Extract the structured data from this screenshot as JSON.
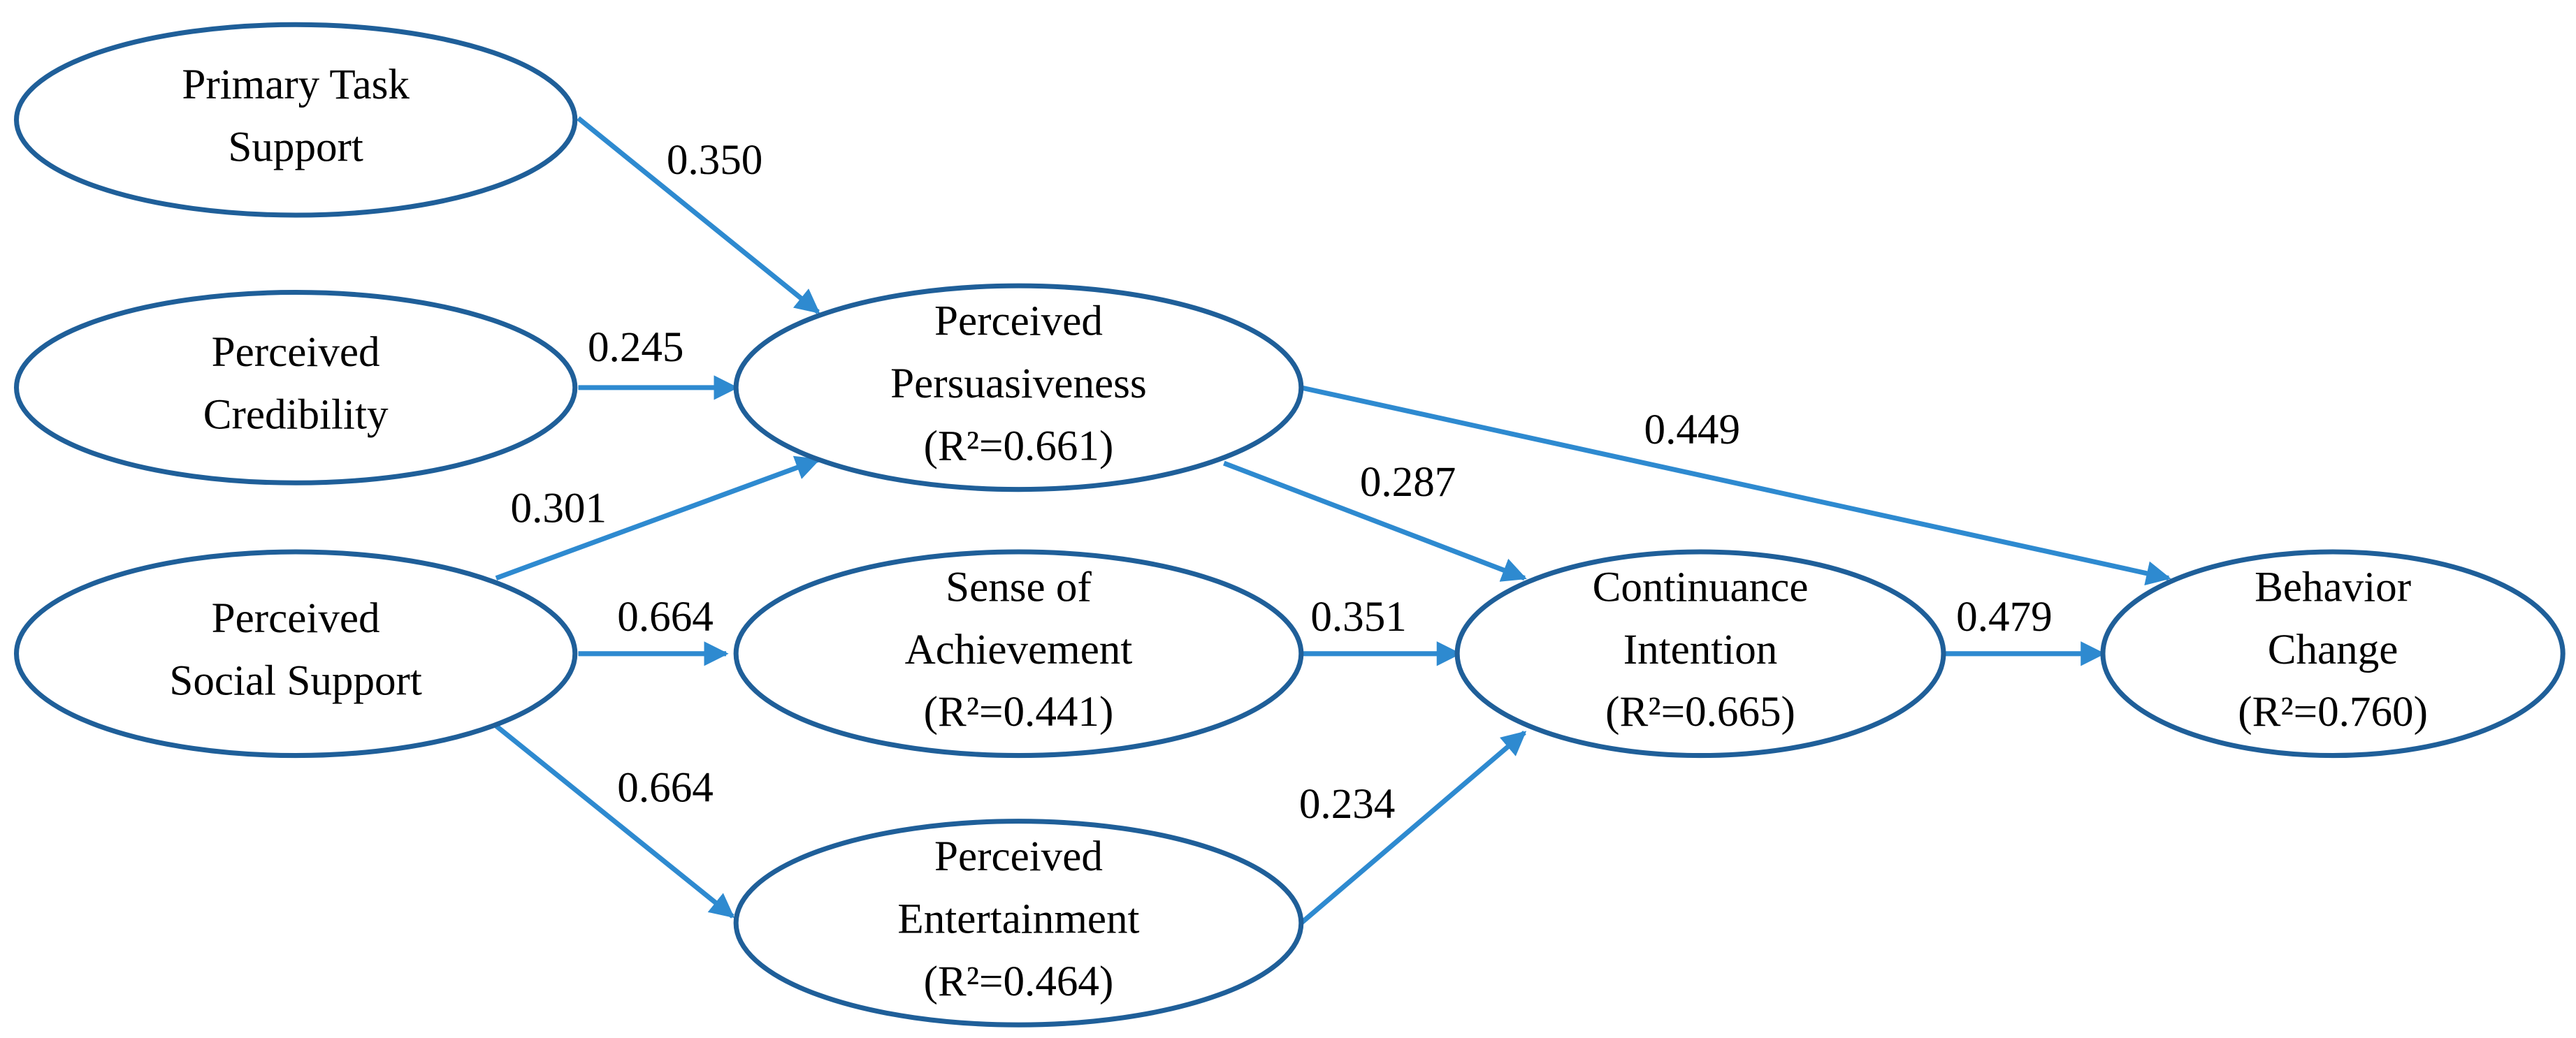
{
  "nodes": [
    {
      "id": "pts",
      "lines": [
        "Primary Task",
        "Support"
      ]
    },
    {
      "id": "pc",
      "lines": [
        "Perceived",
        "Credibility"
      ]
    },
    {
      "id": "pss",
      "lines": [
        "Perceived",
        "Social Support"
      ]
    },
    {
      "id": "pp",
      "lines": [
        "Perceived",
        "Persuasiveness",
        "(R²=0.661)"
      ]
    },
    {
      "id": "sa",
      "lines": [
        "Sense of",
        "Achievement",
        "(R²=0.441)"
      ]
    },
    {
      "id": "pe",
      "lines": [
        "Perceived",
        "Entertainment",
        "(R²=0.464)"
      ]
    },
    {
      "id": "ci",
      "lines": [
        "Continuance",
        "Intention",
        "(R²=0.665)"
      ]
    },
    {
      "id": "bc",
      "lines": [
        "Behavior",
        "Change",
        "(R²=0.760)"
      ]
    }
  ],
  "edges": [
    {
      "from": "pts",
      "to": "pp",
      "label": "0.350"
    },
    {
      "from": "pc",
      "to": "pp",
      "label": "0.245"
    },
    {
      "from": "pss",
      "to": "pp",
      "label": "0.301"
    },
    {
      "from": "pss",
      "to": "sa",
      "label": "0.664"
    },
    {
      "from": "pss",
      "to": "pe",
      "label": "0.664"
    },
    {
      "from": "pp",
      "to": "ci",
      "label": "0.287"
    },
    {
      "from": "pp",
      "to": "bc",
      "label": "0.449"
    },
    {
      "from": "sa",
      "to": "ci",
      "label": "0.351"
    },
    {
      "from": "pe",
      "to": "ci",
      "label": "0.234"
    },
    {
      "from": "ci",
      "to": "bc",
      "label": "0.479"
    }
  ]
}
